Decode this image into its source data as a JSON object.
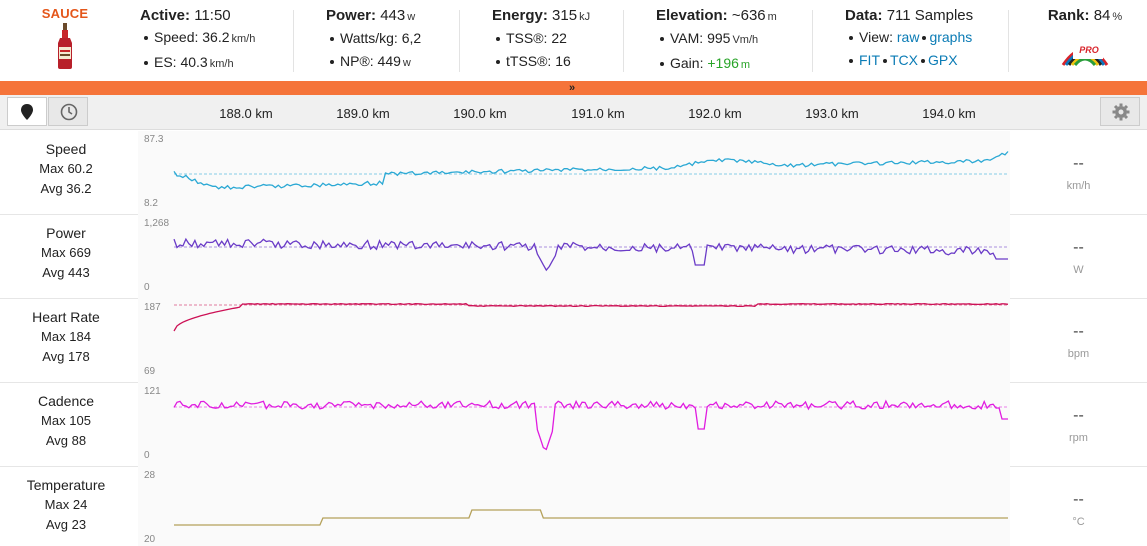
{
  "header": {
    "logo_text": "SAUCE",
    "active": {
      "label": "Active:",
      "value": "11:50",
      "lines": [
        {
          "label": "Speed:",
          "value": "36.2",
          "unit": "km/h"
        },
        {
          "label": "ES:",
          "value": "40.3",
          "unit": "km/h"
        }
      ]
    },
    "power": {
      "label": "Power:",
      "value": "443",
      "unit": "w",
      "lines": [
        {
          "label": "Watts/kg:",
          "value": "6,2",
          "unit": ""
        },
        {
          "label": "NP®:",
          "value": "449",
          "unit": "w"
        }
      ]
    },
    "energy": {
      "label": "Energy:",
      "value": "315",
      "unit": "kJ",
      "lines": [
        {
          "label": "TSS®:",
          "value": "22",
          "unit": ""
        },
        {
          "label": "tTSS®:",
          "value": "16",
          "unit": ""
        }
      ]
    },
    "elevation": {
      "label": "Elevation:",
      "value": "~636",
      "unit": "m",
      "lines": [
        {
          "label": "VAM:",
          "value": "995",
          "unit": "Vm/h"
        },
        {
          "label": "Gain:",
          "value": "+196",
          "unit": "m"
        }
      ]
    },
    "data": {
      "label": "Data:",
      "value": "711 Samples",
      "view_label": "View:",
      "view_raw": "raw",
      "view_graphs": "graphs",
      "exports": [
        "FIT",
        "TCX",
        "GPX"
      ]
    },
    "rank": {
      "label": "Rank:",
      "value": "84",
      "unit": "%",
      "badge_text": "PRO"
    }
  },
  "toolbar": {
    "x_ticks": [
      "188.0 km",
      "189.0 km",
      "190.0 km",
      "191.0 km",
      "192.0 km",
      "193.0 km",
      "194.0 km"
    ]
  },
  "colors": {
    "speed": "#2aa8d4",
    "power": "#6a3bc7",
    "hr": "#cc1055",
    "cadence": "#e01ce0",
    "temp": "#b5a15a",
    "accent": "#f5743a"
  },
  "rows": [
    {
      "key": "speed",
      "name": "Speed",
      "max_label": "Max",
      "max": "60.2",
      "avg_label": "Avg",
      "avg": "36.2",
      "ymax": "87.3",
      "ymin": "8.2",
      "current": "--",
      "unit": "km/h"
    },
    {
      "key": "power",
      "name": "Power",
      "max_label": "Max",
      "max": "669",
      "avg_label": "Avg",
      "avg": "443",
      "ymax": "1,268",
      "ymin": "0",
      "current": "--",
      "unit": "W"
    },
    {
      "key": "hr",
      "name": "Heart Rate",
      "max_label": "Max",
      "max": "184",
      "avg_label": "Avg",
      "avg": "178",
      "ymax": "187",
      "ymin": "69",
      "current": "--",
      "unit": "bpm"
    },
    {
      "key": "cadence",
      "name": "Cadence",
      "max_label": "Max",
      "max": "105",
      "avg_label": "Avg",
      "avg": "88",
      "ymax": "121",
      "ymin": "0",
      "current": "--",
      "unit": "rpm"
    },
    {
      "key": "temp",
      "name": "Temperature",
      "max_label": "Max",
      "max": "24",
      "avg_label": "Avg",
      "avg": "23",
      "ymax": "28",
      "ymin": "20",
      "current": "--",
      "unit": "°C"
    }
  ]
}
